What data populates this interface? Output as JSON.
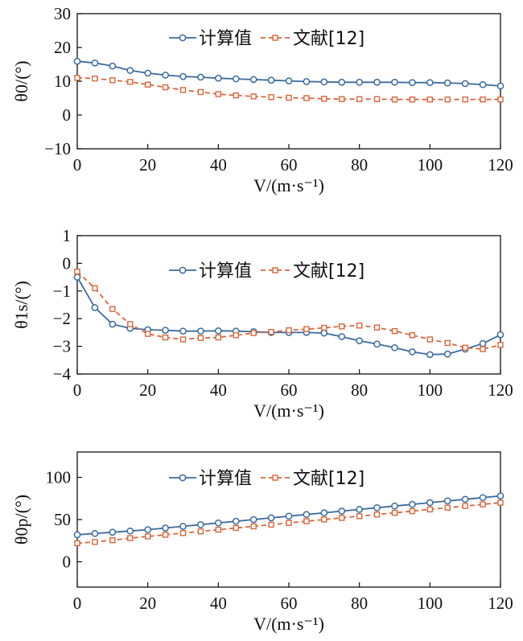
{
  "chart_data": [
    {
      "type": "line",
      "xlabel": "V/(m·s⁻¹)",
      "ylabel": "θ0/(°)",
      "xlim": [
        0,
        120
      ],
      "ylim": [
        -10,
        30
      ],
      "xticks": [
        "0",
        "20",
        "40",
        "60",
        "80",
        "100",
        "120"
      ],
      "yticks": [
        "−10",
        "0",
        "10",
        "20",
        "30"
      ],
      "legend_position": "top-center",
      "x": [
        0,
        5,
        10,
        15,
        20,
        25,
        30,
        35,
        40,
        45,
        50,
        55,
        60,
        65,
        70,
        75,
        80,
        85,
        90,
        95,
        100,
        105,
        110,
        115,
        120
      ],
      "series": [
        {
          "name": "计算值",
          "color": "#3b6aa0",
          "marker": "circle",
          "values": [
            15.9,
            15.4,
            14.5,
            13.2,
            12.4,
            11.8,
            11.4,
            11.2,
            10.9,
            10.7,
            10.5,
            10.3,
            10.1,
            9.9,
            9.8,
            9.7,
            9.7,
            9.7,
            9.7,
            9.6,
            9.6,
            9.5,
            9.3,
            9.0,
            8.6
          ]
        },
        {
          "name": "文献[12]",
          "color": "#d9663c",
          "marker": "square",
          "values": [
            11.0,
            10.8,
            10.3,
            9.8,
            9.0,
            8.2,
            7.4,
            6.8,
            6.2,
            5.8,
            5.5,
            5.3,
            5.1,
            5.0,
            4.8,
            4.7,
            4.7,
            4.7,
            4.6,
            4.6,
            4.6,
            4.6,
            4.6,
            4.6,
            4.6
          ]
        }
      ]
    },
    {
      "type": "line",
      "xlabel": "V/(m·s⁻¹)",
      "ylabel": "θ1s/(°)",
      "xlim": [
        0,
        120
      ],
      "ylim": [
        -4,
        1
      ],
      "xticks": [
        "0",
        "20",
        "40",
        "60",
        "80",
        "100",
        "120"
      ],
      "yticks": [
        "−4",
        "−3",
        "−2",
        "−1",
        "0",
        "1"
      ],
      "legend_position": "top-center",
      "x": [
        0,
        5,
        10,
        15,
        20,
        25,
        30,
        35,
        40,
        45,
        50,
        55,
        60,
        65,
        70,
        75,
        80,
        85,
        90,
        95,
        100,
        105,
        110,
        115,
        120
      ],
      "series": [
        {
          "name": "计算值",
          "color": "#3b6aa0",
          "marker": "circle",
          "values": [
            -0.5,
            -1.6,
            -2.2,
            -2.35,
            -2.4,
            -2.42,
            -2.45,
            -2.45,
            -2.44,
            -2.45,
            -2.47,
            -2.5,
            -2.5,
            -2.5,
            -2.52,
            -2.65,
            -2.8,
            -2.92,
            -3.05,
            -3.2,
            -3.3,
            -3.28,
            -3.1,
            -2.9,
            -2.58
          ]
        },
        {
          "name": "文献[12]",
          "color": "#d9663c",
          "marker": "square",
          "values": [
            -0.3,
            -0.9,
            -1.65,
            -2.2,
            -2.55,
            -2.68,
            -2.75,
            -2.7,
            -2.68,
            -2.6,
            -2.52,
            -2.48,
            -2.42,
            -2.38,
            -2.33,
            -2.28,
            -2.25,
            -2.32,
            -2.45,
            -2.6,
            -2.75,
            -2.88,
            -3.05,
            -3.1,
            -2.95
          ]
        }
      ]
    },
    {
      "type": "line",
      "xlabel": "V/(m·s⁻¹)",
      "ylabel": "θ0p/(°)",
      "xlim": [
        0,
        120
      ],
      "ylim": [
        -30,
        130
      ],
      "xticks": [
        "0",
        "20",
        "40",
        "60",
        "80",
        "100",
        "120"
      ],
      "yticks": [
        "0",
        "50",
        "100"
      ],
      "legend_position": "top-center",
      "x": [
        0,
        5,
        10,
        15,
        20,
        25,
        30,
        35,
        40,
        45,
        50,
        55,
        60,
        65,
        70,
        75,
        80,
        85,
        90,
        95,
        100,
        105,
        110,
        115,
        120
      ],
      "series": [
        {
          "name": "计算值",
          "color": "#3b6aa0",
          "marker": "circle",
          "values": [
            32,
            33.5,
            35,
            36.5,
            38,
            40,
            42,
            44,
            46,
            48,
            50,
            52,
            54,
            56,
            58,
            60,
            62,
            64,
            66,
            68,
            70,
            72,
            74,
            76,
            78
          ]
        },
        {
          "name": "文献[12]",
          "color": "#d9663c",
          "marker": "square",
          "values": [
            22,
            23.5,
            25.5,
            28,
            30,
            32,
            34,
            36,
            38,
            40,
            42,
            44,
            46,
            48,
            50,
            52,
            54,
            56,
            58,
            60,
            62,
            64,
            66,
            68,
            70
          ]
        }
      ]
    }
  ]
}
